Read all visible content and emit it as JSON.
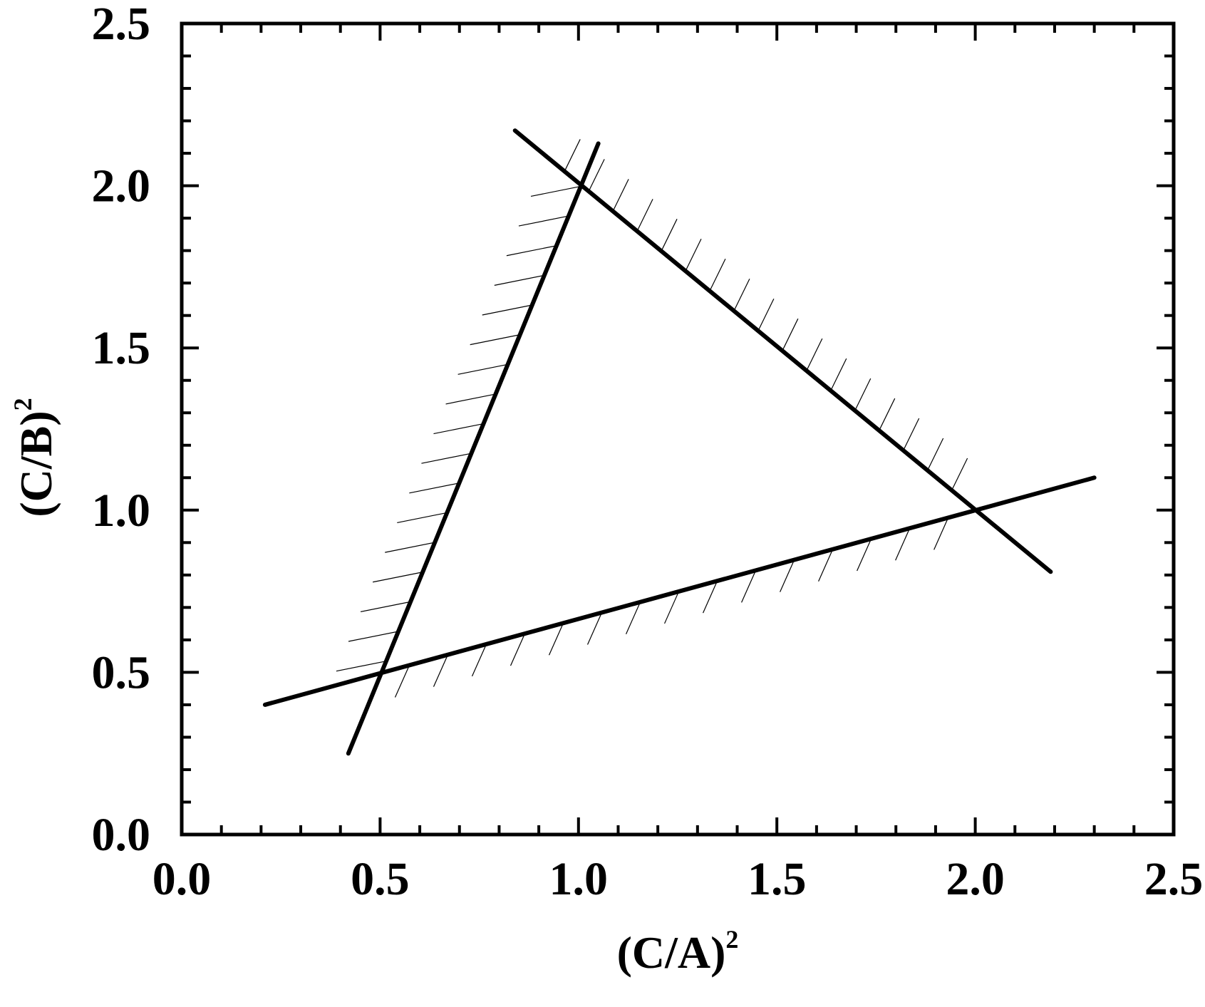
{
  "chart_data": {
    "type": "line",
    "title": "",
    "xlabel": "(C/A)",
    "xlabel_superscript": "2",
    "ylabel": "(C/B)",
    "ylabel_superscript": "2",
    "xlim": [
      0.0,
      2.5
    ],
    "ylim": [
      0.0,
      2.5
    ],
    "x_ticks": [
      "0.0",
      "0.5",
      "1.0",
      "1.5",
      "2.0",
      "2.5"
    ],
    "y_ticks": [
      "0.0",
      "0.5",
      "1.0",
      "1.5",
      "2.0",
      "2.5"
    ],
    "x_minor_step": 0.1,
    "y_minor_step": 0.1,
    "grid": false,
    "legend": "none",
    "line_color": "#000000",
    "series": [
      {
        "points": [
          [
            0.42,
            0.25
          ],
          [
            1.05,
            2.13
          ]
        ],
        "hatch": "left"
      },
      {
        "points": [
          [
            0.84,
            2.17
          ],
          [
            2.19,
            0.81
          ]
        ],
        "hatch": "upper-right"
      },
      {
        "points": [
          [
            0.21,
            0.4
          ],
          [
            2.3,
            1.1
          ]
        ],
        "hatch": "below"
      }
    ],
    "intersections": [
      [
        0.5,
        0.5
      ],
      [
        1.0,
        2.0
      ],
      [
        2.0,
        1.0
      ]
    ]
  }
}
